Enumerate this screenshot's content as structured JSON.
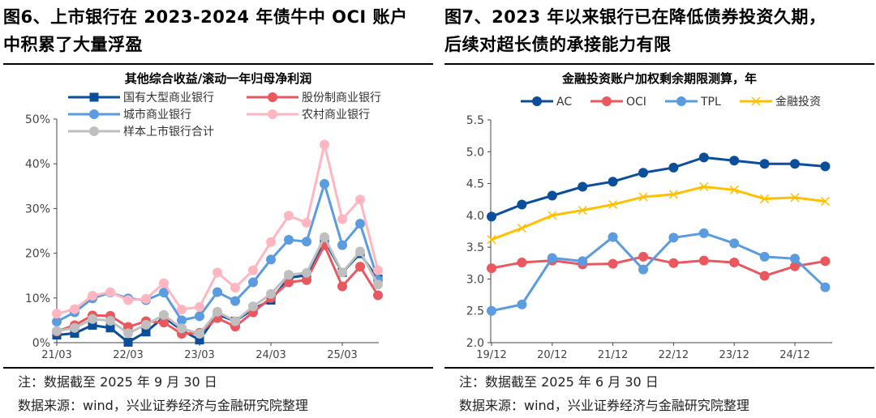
{
  "figures": [
    {
      "title_line1": "图6、上市银行在 2023-2024 年债牛中 OCI 账户",
      "title_line2": "中积累了大量浮盈",
      "note": "注：数据截至 2025 年 9 月 30 日",
      "source": "数据来源：wind，兴业证券经济与金融研究院整理"
    },
    {
      "title_line1": "图7、2023 年以来银行已在降低债券投资久期，",
      "title_line2": "后续对超长债的承接能力有限",
      "note": "注：数据截至 2025 年 6 月 30 日",
      "source": "数据来源：wind，兴业证券经济与金融研究院整理"
    }
  ],
  "chart_data": [
    {
      "type": "line",
      "title": "其他综合收益/滚动一年归母净利润",
      "y_unit": "%",
      "ylim": [
        0,
        50
      ],
      "yticks": [
        0,
        10,
        20,
        30,
        40,
        50
      ],
      "ytick_labels": [
        "0%",
        "10%",
        "20%",
        "30%",
        "40%",
        "50%"
      ],
      "x": [
        "21/03",
        "21/06",
        "21/09",
        "21/12",
        "22/03",
        "22/06",
        "22/09",
        "22/12",
        "23/03",
        "23/06",
        "23/09",
        "23/12",
        "24/03",
        "24/06",
        "24/09",
        "24/12",
        "25/03",
        "25/06",
        "25/09"
      ],
      "xtick_labels": [
        "21/03",
        "22/03",
        "23/03",
        "24/03",
        "25/03"
      ],
      "legend": "top",
      "grid": false,
      "series": [
        {
          "name": "国有大型商业银行",
          "color": "#0B4F9C",
          "marker": "square",
          "values": [
            1.7,
            2.1,
            3.9,
            3.3,
            0.1,
            2.4,
            5.7,
            2.8,
            0.6,
            6.3,
            4.8,
            7.5,
            9.5,
            14.5,
            15.1,
            22.9,
            15.7,
            19.9,
            14.2
          ]
        },
        {
          "name": "股份制商业银行",
          "color": "#E9575F",
          "marker": "circle",
          "values": [
            2.5,
            3.9,
            6.1,
            6.0,
            3.5,
            4.8,
            4.5,
            2.0,
            2.2,
            5.5,
            3.6,
            6.8,
            10.0,
            13.5,
            14.0,
            21.8,
            12.6,
            17.0,
            10.6
          ]
        },
        {
          "name": "城市商业银行",
          "color": "#5B9BE0",
          "marker": "circle",
          "values": [
            4.7,
            6.8,
            9.9,
            11.2,
            9.9,
            9.5,
            11.2,
            5.0,
            5.9,
            11.3,
            9.3,
            13.5,
            18.6,
            23.0,
            22.6,
            35.5,
            21.8,
            26.6,
            14.0
          ]
        },
        {
          "name": "农村商业银行",
          "color": "#FFB6C1",
          "marker": "circle",
          "values": [
            6.5,
            7.5,
            10.5,
            11.3,
            9.5,
            9.8,
            13.3,
            7.4,
            8.0,
            15.7,
            12.3,
            16.2,
            22.5,
            28.4,
            26.8,
            44.3,
            27.6,
            32.0,
            16.2
          ]
        },
        {
          "name": "样本上市银行合计",
          "color": "#BFBFBF",
          "marker": "circle",
          "values": [
            2.6,
            3.3,
            5.3,
            4.9,
            2.1,
            4.0,
            6.2,
            3.2,
            2.0,
            6.9,
            4.8,
            8.1,
            10.9,
            15.2,
            15.6,
            23.6,
            15.7,
            20.4,
            13.0
          ]
        }
      ]
    },
    {
      "type": "line",
      "title": "金融投资账户加权剩余期限测算，年",
      "ylim": [
        2.0,
        5.5
      ],
      "yticks": [
        2.0,
        2.5,
        3.0,
        3.5,
        4.0,
        4.5,
        5.0,
        5.5
      ],
      "ytick_labels": [
        "2.0",
        "2.5",
        "3.0",
        "3.5",
        "4.0",
        "4.5",
        "5.0",
        "5.5"
      ],
      "x": [
        "19/12",
        "20/06",
        "20/12",
        "21/06",
        "21/12",
        "22/06",
        "22/12",
        "23/06",
        "23/12",
        "24/06",
        "24/12",
        "25/06"
      ],
      "xtick_labels": [
        "19/12",
        "20/12",
        "21/12",
        "22/12",
        "23/12",
        "24/12"
      ],
      "legend": "top",
      "grid": false,
      "series": [
        {
          "name": "AC",
          "color": "#0B4F9C",
          "marker": "circle",
          "values": [
            3.98,
            4.17,
            4.31,
            4.45,
            4.53,
            4.67,
            4.75,
            4.91,
            4.86,
            4.81,
            4.81,
            4.77
          ]
        },
        {
          "name": "OCI",
          "color": "#E9575F",
          "marker": "circle",
          "values": [
            3.17,
            3.26,
            3.29,
            3.23,
            3.24,
            3.35,
            3.25,
            3.29,
            3.26,
            3.05,
            3.2,
            3.28
          ]
        },
        {
          "name": "TPL",
          "color": "#5B9BE0",
          "marker": "circle",
          "values": [
            2.5,
            2.6,
            3.33,
            3.28,
            3.66,
            3.15,
            3.65,
            3.72,
            3.56,
            3.35,
            3.32,
            2.87
          ]
        },
        {
          "name": "金融投资",
          "color": "#FFC000",
          "marker": "x",
          "values": [
            3.62,
            3.8,
            4.0,
            4.08,
            4.17,
            4.29,
            4.33,
            4.45,
            4.4,
            4.26,
            4.28,
            4.22
          ]
        }
      ]
    }
  ]
}
